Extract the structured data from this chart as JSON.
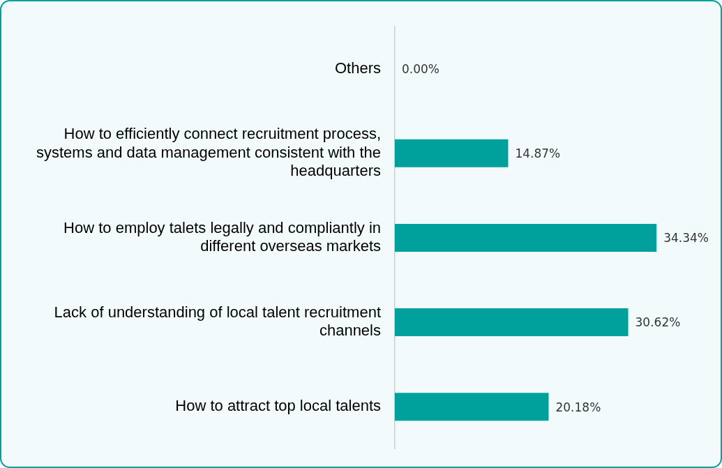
{
  "chart_data": {
    "type": "bar",
    "orientation": "horizontal",
    "categories": [
      "Others",
      "How to efficiently connect recruitment process, systems and data management consistent with the headquarters",
      "How to employ talets legally and compliantly in different overseas markets",
      "Lack of understanding of local talent recruitment channels",
      "How to attract top local talents"
    ],
    "values": [
      0,
      14.87,
      34.34,
      30.62,
      20.18
    ],
    "value_labels": [
      "0.00%",
      "14.87%",
      "34.34%",
      "30.62%",
      "20.18%"
    ],
    "color": "#00a19d",
    "tick_labels": "y"
  }
}
